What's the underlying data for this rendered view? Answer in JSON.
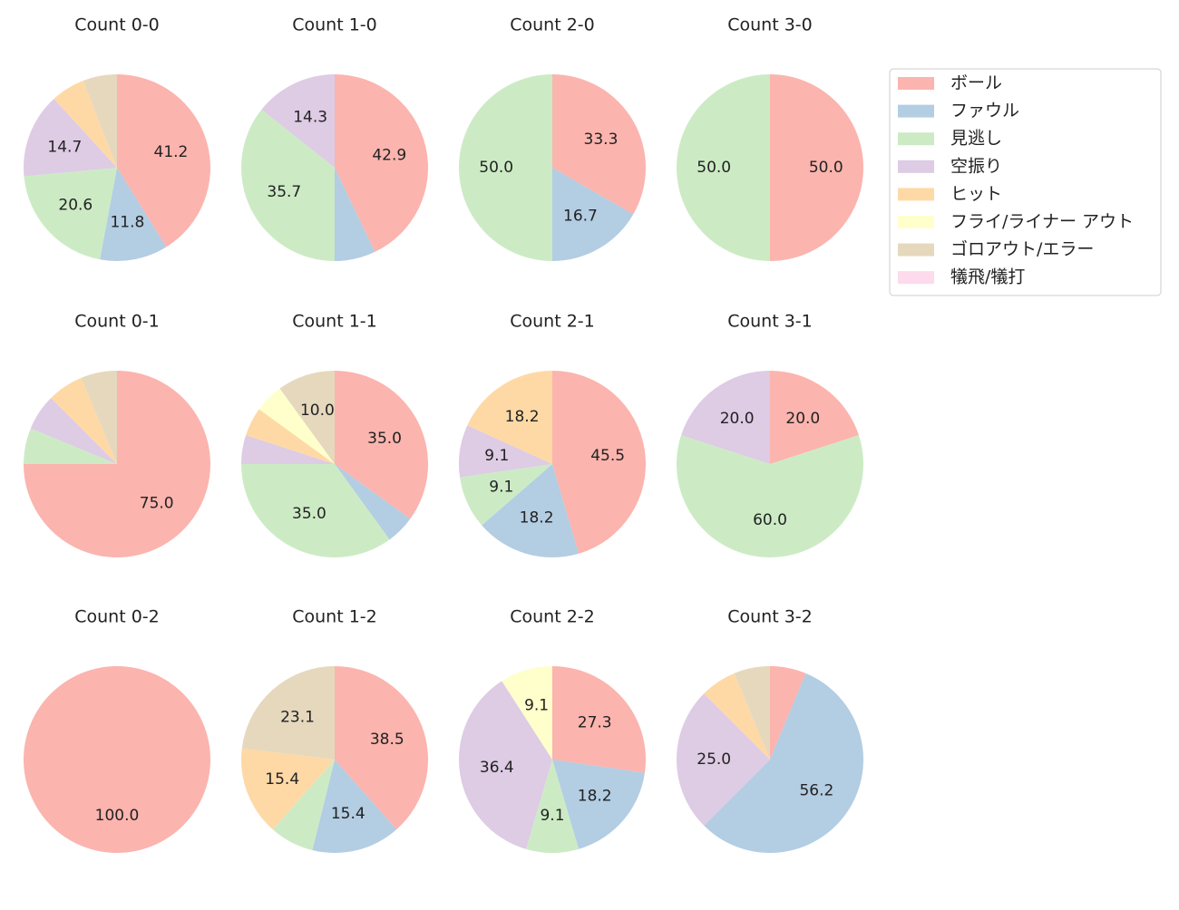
{
  "chart_data": [
    {
      "type": "pie",
      "title": "Count 0-0",
      "categories": [
        "ボール",
        "ファウル",
        "見逃し",
        "空振り",
        "ヒット",
        "フライ/ライナー アウト",
        "ゴロアウト/エラー",
        "犠飛/犠打"
      ],
      "colors": [
        "#fbb4ae",
        "#b3cde3",
        "#ccebc5",
        "#decbe4",
        "#fed9a6",
        "#ffffcc",
        "#e5d8bd",
        "#fddaec"
      ],
      "values": [
        41.2,
        11.8,
        20.6,
        14.7,
        5.9,
        0,
        5.9,
        0
      ],
      "value_labels": [
        "41.2",
        "11.8",
        "20.6",
        "14.7",
        null,
        null,
        null,
        null
      ]
    },
    {
      "type": "pie",
      "title": "Count 1-0",
      "categories": [
        "ボール",
        "ファウル",
        "見逃し",
        "空振り",
        "ヒット",
        "フライ/ライナー アウト",
        "ゴロアウト/エラー",
        "犠飛/犠打"
      ],
      "colors": [
        "#fbb4ae",
        "#b3cde3",
        "#ccebc5",
        "#decbe4",
        "#fed9a6",
        "#ffffcc",
        "#e5d8bd",
        "#fddaec"
      ],
      "values": [
        42.9,
        7.1,
        35.7,
        14.3,
        0,
        0,
        0,
        0
      ],
      "value_labels": [
        "42.9",
        null,
        "35.7",
        "14.3",
        null,
        null,
        null,
        null
      ]
    },
    {
      "type": "pie",
      "title": "Count 2-0",
      "categories": [
        "ボール",
        "ファウル",
        "見逃し",
        "空振り",
        "ヒット",
        "フライ/ライナー アウト",
        "ゴロアウト/エラー",
        "犠飛/犠打"
      ],
      "colors": [
        "#fbb4ae",
        "#b3cde3",
        "#ccebc5",
        "#decbe4",
        "#fed9a6",
        "#ffffcc",
        "#e5d8bd",
        "#fddaec"
      ],
      "values": [
        33.3,
        16.7,
        50,
        0,
        0,
        0,
        0,
        0
      ],
      "value_labels": [
        "33.3",
        "16.7",
        "50.0",
        null,
        null,
        null,
        null,
        null
      ]
    },
    {
      "type": "pie",
      "title": "Count 3-0",
      "categories": [
        "ボール",
        "ファウル",
        "見逃し",
        "空振り",
        "ヒット",
        "フライ/ライナー アウト",
        "ゴロアウト/エラー",
        "犠飛/犠打"
      ],
      "colors": [
        "#fbb4ae",
        "#b3cde3",
        "#ccebc5",
        "#decbe4",
        "#fed9a6",
        "#ffffcc",
        "#e5d8bd",
        "#fddaec"
      ],
      "values": [
        50,
        0,
        50,
        0,
        0,
        0,
        0,
        0
      ],
      "value_labels": [
        "50.0",
        null,
        "50.0",
        null,
        null,
        null,
        null,
        null
      ]
    },
    {
      "type": "pie",
      "title": "Count 0-1",
      "categories": [
        "ボール",
        "ファウル",
        "見逃し",
        "空振り",
        "ヒット",
        "フライ/ライナー アウト",
        "ゴロアウト/エラー",
        "犠飛/犠打"
      ],
      "colors": [
        "#fbb4ae",
        "#b3cde3",
        "#ccebc5",
        "#decbe4",
        "#fed9a6",
        "#ffffcc",
        "#e5d8bd",
        "#fddaec"
      ],
      "values": [
        75,
        0,
        6.25,
        6.25,
        6.25,
        0,
        6.25,
        0
      ],
      "value_labels": [
        "75.0",
        null,
        null,
        null,
        null,
        null,
        null,
        null
      ]
    },
    {
      "type": "pie",
      "title": "Count 1-1",
      "categories": [
        "ボール",
        "ファウル",
        "見逃し",
        "空振り",
        "ヒット",
        "フライ/ライナー アウト",
        "ゴロアウト/エラー",
        "犠飛/犠打"
      ],
      "colors": [
        "#fbb4ae",
        "#b3cde3",
        "#ccebc5",
        "#decbe4",
        "#fed9a6",
        "#ffffcc",
        "#e5d8bd",
        "#fddaec"
      ],
      "values": [
        35,
        5,
        35,
        5,
        5,
        5,
        10,
        0
      ],
      "value_labels": [
        "35.0",
        null,
        "35.0",
        null,
        null,
        null,
        "10.0",
        null
      ]
    },
    {
      "type": "pie",
      "title": "Count 2-1",
      "categories": [
        "ボール",
        "ファウル",
        "見逃し",
        "空振り",
        "ヒット",
        "フライ/ライナー アウト",
        "ゴロアウト/エラー",
        "犠飛/犠打"
      ],
      "colors": [
        "#fbb4ae",
        "#b3cde3",
        "#ccebc5",
        "#decbe4",
        "#fed9a6",
        "#ffffcc",
        "#e5d8bd",
        "#fddaec"
      ],
      "values": [
        45.5,
        18.2,
        9.1,
        9.1,
        18.2,
        0,
        0,
        0
      ],
      "value_labels": [
        "45.5",
        "18.2",
        "9.1",
        "9.1",
        "18.2",
        null,
        null,
        null
      ]
    },
    {
      "type": "pie",
      "title": "Count 3-1",
      "categories": [
        "ボール",
        "ファウル",
        "見逃し",
        "空振り",
        "ヒット",
        "フライ/ライナー アウト",
        "ゴロアウト/エラー",
        "犠飛/犠打"
      ],
      "colors": [
        "#fbb4ae",
        "#b3cde3",
        "#ccebc5",
        "#decbe4",
        "#fed9a6",
        "#ffffcc",
        "#e5d8bd",
        "#fddaec"
      ],
      "values": [
        20,
        0,
        60,
        20,
        0,
        0,
        0,
        0
      ],
      "value_labels": [
        "20.0",
        null,
        "60.0",
        "20.0",
        null,
        null,
        null,
        null
      ]
    },
    {
      "type": "pie",
      "title": "Count 0-2",
      "categories": [
        "ボール",
        "ファウル",
        "見逃し",
        "空振り",
        "ヒット",
        "フライ/ライナー アウト",
        "ゴロアウト/エラー",
        "犠飛/犠打"
      ],
      "colors": [
        "#fbb4ae",
        "#b3cde3",
        "#ccebc5",
        "#decbe4",
        "#fed9a6",
        "#ffffcc",
        "#e5d8bd",
        "#fddaec"
      ],
      "values": [
        100,
        0,
        0,
        0,
        0,
        0,
        0,
        0
      ],
      "value_labels": [
        "100.0",
        null,
        null,
        null,
        null,
        null,
        null,
        null
      ]
    },
    {
      "type": "pie",
      "title": "Count 1-2",
      "categories": [
        "ボール",
        "ファウル",
        "見逃し",
        "空振り",
        "ヒット",
        "フライ/ライナー アウト",
        "ゴロアウト/エラー",
        "犠飛/犠打"
      ],
      "colors": [
        "#fbb4ae",
        "#b3cde3",
        "#ccebc5",
        "#decbe4",
        "#fed9a6",
        "#ffffcc",
        "#e5d8bd",
        "#fddaec"
      ],
      "values": [
        38.5,
        15.4,
        7.7,
        0,
        15.4,
        0,
        23.1,
        0
      ],
      "value_labels": [
        "38.5",
        "15.4",
        null,
        null,
        "15.4",
        null,
        "23.1",
        null
      ]
    },
    {
      "type": "pie",
      "title": "Count 2-2",
      "categories": [
        "ボール",
        "ファウル",
        "見逃し",
        "空振り",
        "ヒット",
        "フライ/ライナー アウト",
        "ゴロアウト/エラー",
        "犠飛/犠打"
      ],
      "colors": [
        "#fbb4ae",
        "#b3cde3",
        "#ccebc5",
        "#decbe4",
        "#fed9a6",
        "#ffffcc",
        "#e5d8bd",
        "#fddaec"
      ],
      "values": [
        27.3,
        18.2,
        9.1,
        36.4,
        0,
        9.1,
        0,
        0
      ],
      "value_labels": [
        "27.3",
        "18.2",
        "9.1",
        "36.4",
        null,
        "9.1",
        null,
        null
      ]
    },
    {
      "type": "pie",
      "title": "Count 3-2",
      "categories": [
        "ボール",
        "ファウル",
        "見逃し",
        "空振り",
        "ヒット",
        "フライ/ライナー アウト",
        "ゴロアウト/エラー",
        "犠飛/犠打"
      ],
      "colors": [
        "#fbb4ae",
        "#b3cde3",
        "#ccebc5",
        "#decbe4",
        "#fed9a6",
        "#ffffcc",
        "#e5d8bd",
        "#fddaec"
      ],
      "values": [
        6.25,
        56.2,
        0,
        25,
        6.25,
        0,
        6.25,
        0
      ],
      "value_labels": [
        null,
        "56.2",
        null,
        "25.0",
        null,
        null,
        null,
        null
      ]
    }
  ]
}
